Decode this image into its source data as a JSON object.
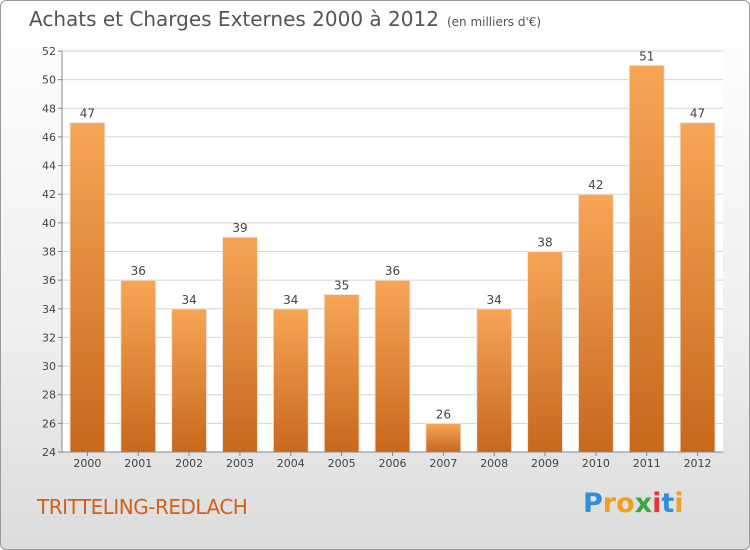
{
  "chart_data": {
    "type": "bar",
    "title": "Achats et Charges Externes 2000 à 2012",
    "subtitle": "(en milliers d'€)",
    "categories": [
      "2000",
      "2001",
      "2002",
      "2003",
      "2004",
      "2005",
      "2006",
      "2007",
      "2008",
      "2009",
      "2010",
      "2011",
      "2012"
    ],
    "values": [
      47,
      36,
      34,
      39,
      34,
      35,
      36,
      26,
      34,
      38,
      42,
      51,
      47
    ],
    "ylim": [
      24,
      52
    ],
    "yticks": [
      24,
      26,
      28,
      30,
      32,
      34,
      36,
      38,
      40,
      42,
      44,
      46,
      48,
      50,
      52
    ],
    "grid": true,
    "bar_color_top": "#f7a655",
    "bar_color_bottom": "#c8681c"
  },
  "place_name": "TRITTELING-REDLACH",
  "logo": {
    "letters": [
      "P",
      "r",
      "o",
      "x",
      "i",
      "t",
      "i"
    ],
    "colors": [
      "#2f8fd8",
      "#f0a020",
      "#f0a020",
      "#3aa83a",
      "#e03838",
      "#2f8fd8",
      "#f0a020"
    ]
  }
}
